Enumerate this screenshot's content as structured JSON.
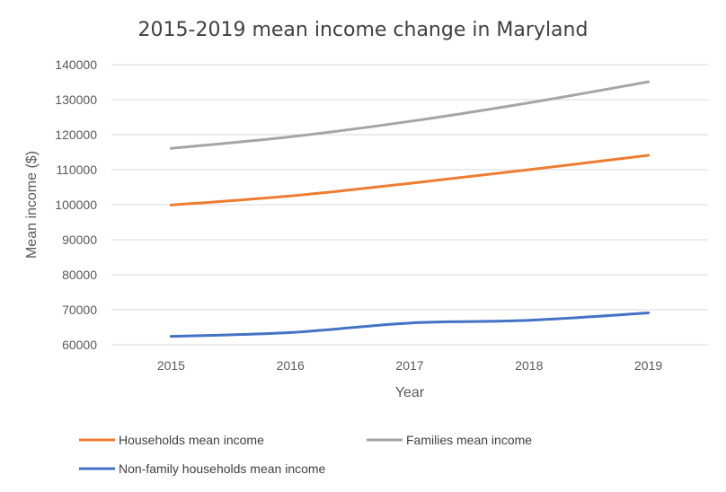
{
  "chart_data": {
    "type": "line",
    "title": "2015-2019 mean income change in Maryland",
    "xlabel": "Year",
    "ylabel": "Mean income ($)",
    "categories": [
      "2015",
      "2016",
      "2017",
      "2018",
      "2019"
    ],
    "ylim": [
      60000,
      140000
    ],
    "yticks": [
      "60000",
      "70000",
      "80000",
      "90000",
      "100000",
      "110000",
      "120000",
      "130000",
      "140000"
    ],
    "grid": true,
    "legend_position": "bottom",
    "series": [
      {
        "name": "Households mean income",
        "color": "#ED7D31",
        "values": [
          99900,
          102500,
          106100,
          110000,
          114100
        ]
      },
      {
        "name": "Families mean income",
        "color": "#A5A5A5",
        "values": [
          116100,
          119400,
          123800,
          129100,
          135100
        ]
      },
      {
        "name": "Non-family households mean income",
        "color": "#4472C4",
        "values": [
          62400,
          63500,
          66200,
          67000,
          69100
        ]
      }
    ]
  }
}
